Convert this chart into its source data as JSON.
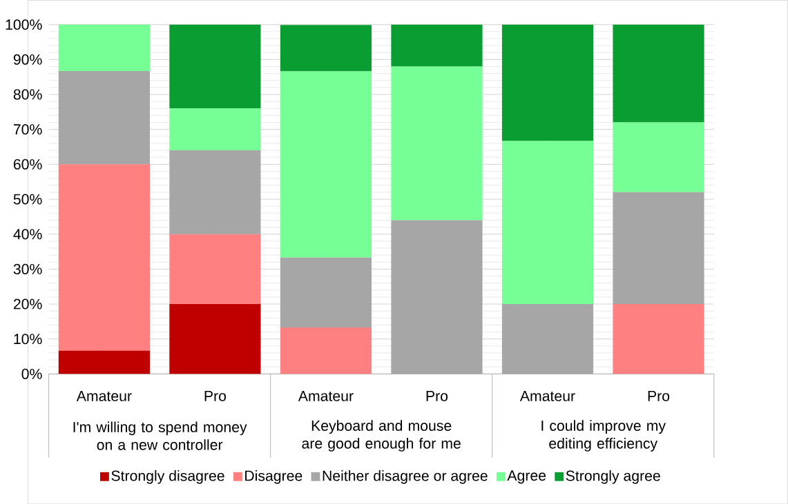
{
  "chart_data": {
    "type": "bar",
    "stacked": true,
    "categories": [
      "Amateur",
      "Pro",
      "Amateur",
      "Pro",
      "Amateur",
      "Pro"
    ],
    "series": [
      {
        "name": "Strongly disagree",
        "color": "#c00000",
        "values": [
          6.7,
          20,
          0,
          0,
          0,
          0
        ]
      },
      {
        "name": "Disagree",
        "color": "#ff8080",
        "values": [
          53.3,
          20,
          13.3,
          0,
          0,
          20
        ]
      },
      {
        "name": "Neither disagree or agree",
        "color": "#a6a6a6",
        "values": [
          26.7,
          24,
          20,
          44,
          20,
          32
        ]
      },
      {
        "name": "Agree",
        "color": "#75ff95",
        "values": [
          13.3,
          12,
          53.3,
          44,
          46.7,
          20
        ]
      },
      {
        "name": "Strongly agree",
        "color": "#0a9e32",
        "values": [
          0,
          24,
          13.3,
          12,
          33.3,
          28
        ]
      }
    ],
    "annotations": [
      "I'm willing to spend money on a new controller",
      "Keyboard and mouse are good enough for me",
      "I could improve my editing efficiency"
    ],
    "ylim": [
      0,
      100
    ],
    "yticks": [
      {
        "value": 0,
        "label": "0%"
      },
      {
        "value": 10,
        "label": "10%"
      },
      {
        "value": 20,
        "label": "20%"
      },
      {
        "value": 30,
        "label": "30%"
      },
      {
        "value": 40,
        "label": "40%"
      },
      {
        "value": 50,
        "label": "50%"
      },
      {
        "value": 60,
        "label": "60%"
      },
      {
        "value": 70,
        "label": "70%"
      },
      {
        "value": 80,
        "label": "80%"
      },
      {
        "value": 90,
        "label": "90%"
      },
      {
        "value": 100,
        "label": "100%"
      }
    ],
    "grid": true,
    "legend": "bottom"
  }
}
